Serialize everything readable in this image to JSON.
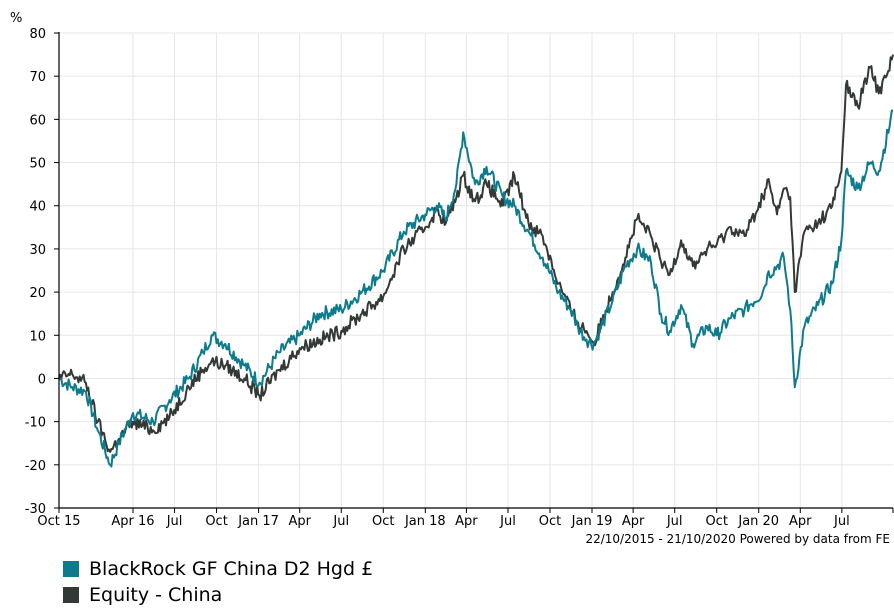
{
  "chart_data": {
    "type": "line",
    "title": "",
    "xlabel": "",
    "ylabel": "%",
    "ylim": [
      -30,
      80
    ],
    "yticks": [
      80,
      70,
      60,
      50,
      40,
      30,
      20,
      10,
      0,
      -10,
      -20,
      -30
    ],
    "grid": true,
    "legend_position": "bottom-left",
    "date_range": "22/10/2015 - 21/10/2020",
    "credit": "Powered by data from FE",
    "x_range": [
      "2015-10-22",
      "2020-10-21"
    ],
    "xtick_labels": [
      {
        "label": "Oct 15",
        "date": "2015-10-22"
      },
      {
        "label": "Apr 16",
        "date": "2016-04-01"
      },
      {
        "label": "Jul",
        "date": "2016-07-01"
      },
      {
        "label": "Oct",
        "date": "2016-10-01"
      },
      {
        "label": "Jan 17",
        "date": "2017-01-01"
      },
      {
        "label": "Apr",
        "date": "2017-04-01"
      },
      {
        "label": "Jul",
        "date": "2017-07-01"
      },
      {
        "label": "Oct",
        "date": "2017-10-01"
      },
      {
        "label": "Jan 18",
        "date": "2018-01-01"
      },
      {
        "label": "Apr",
        "date": "2018-04-01"
      },
      {
        "label": "Jul",
        "date": "2018-07-01"
      },
      {
        "label": "Oct",
        "date": "2018-10-01"
      },
      {
        "label": "Jan 19",
        "date": "2019-01-01"
      },
      {
        "label": "Apr",
        "date": "2019-04-01"
      },
      {
        "label": "Jul",
        "date": "2019-07-01"
      },
      {
        "label": "Oct",
        "date": "2019-10-01"
      },
      {
        "label": "Jan 20",
        "date": "2020-01-01"
      },
      {
        "label": "Apr",
        "date": "2020-04-01"
      },
      {
        "label": "Jul",
        "date": "2020-07-01"
      }
    ],
    "series": [
      {
        "name": "BlackRock GF China D2 Hgd £",
        "color": "#0e7b8c",
        "points": [
          [
            "2015-10-22",
            0
          ],
          [
            "2015-11-20",
            -2
          ],
          [
            "2015-12-20",
            -3
          ],
          [
            "2016-01-15",
            -12
          ],
          [
            "2016-02-11",
            -20
          ],
          [
            "2016-03-01",
            -15
          ],
          [
            "2016-04-01",
            -8
          ],
          [
            "2016-05-15",
            -10
          ],
          [
            "2016-06-20",
            -5
          ],
          [
            "2016-08-01",
            0
          ],
          [
            "2016-09-01",
            6
          ],
          [
            "2016-09-20",
            10
          ],
          [
            "2016-10-20",
            8
          ],
          [
            "2016-12-01",
            3
          ],
          [
            "2017-01-03",
            -1
          ],
          [
            "2017-02-15",
            6
          ],
          [
            "2017-04-01",
            10
          ],
          [
            "2017-05-15",
            15
          ],
          [
            "2017-07-01",
            16
          ],
          [
            "2017-08-15",
            20
          ],
          [
            "2017-10-01",
            25
          ],
          [
            "2017-11-15",
            34
          ],
          [
            "2018-01-01",
            38
          ],
          [
            "2018-01-26",
            40
          ],
          [
            "2018-02-15",
            37
          ],
          [
            "2018-03-10",
            45
          ],
          [
            "2018-03-25",
            57
          ],
          [
            "2018-04-20",
            45
          ],
          [
            "2018-05-15",
            49
          ],
          [
            "2018-06-20",
            42
          ],
          [
            "2018-07-15",
            40
          ],
          [
            "2018-08-15",
            34
          ],
          [
            "2018-09-15",
            28
          ],
          [
            "2018-10-20",
            20
          ],
          [
            "2018-11-15",
            16
          ],
          [
            "2018-12-01",
            12
          ],
          [
            "2018-12-20",
            9
          ],
          [
            "2019-01-05",
            8
          ],
          [
            "2019-02-15",
            18
          ],
          [
            "2019-03-15",
            26
          ],
          [
            "2019-04-10",
            30
          ],
          [
            "2019-05-10",
            27
          ],
          [
            "2019-06-01",
            15
          ],
          [
            "2019-06-20",
            11
          ],
          [
            "2019-07-15",
            17
          ],
          [
            "2019-08-10",
            8
          ],
          [
            "2019-09-10",
            12
          ],
          [
            "2019-10-01",
            10
          ],
          [
            "2019-11-01",
            14
          ],
          [
            "2019-12-01",
            16
          ],
          [
            "2020-01-10",
            20
          ],
          [
            "2020-01-20",
            24
          ],
          [
            "2020-02-10",
            26
          ],
          [
            "2020-02-25",
            28
          ],
          [
            "2020-03-10",
            16
          ],
          [
            "2020-03-20",
            -2
          ],
          [
            "2020-04-10",
            12
          ],
          [
            "2020-05-10",
            17
          ],
          [
            "2020-06-10",
            22
          ],
          [
            "2020-06-30",
            32
          ],
          [
            "2020-07-10",
            48
          ],
          [
            "2020-08-05",
            44
          ],
          [
            "2020-09-01",
            50
          ],
          [
            "2020-09-20",
            48
          ],
          [
            "2020-10-21",
            62
          ]
        ]
      },
      {
        "name": "Equity - China",
        "color": "#333a36",
        "points": [
          [
            "2015-10-22",
            0
          ],
          [
            "2015-11-20",
            1
          ],
          [
            "2015-12-20",
            -1
          ],
          [
            "2016-01-15",
            -10
          ],
          [
            "2016-02-11",
            -17
          ],
          [
            "2016-03-01",
            -14
          ],
          [
            "2016-04-01",
            -10
          ],
          [
            "2016-05-15",
            -12
          ],
          [
            "2016-06-20",
            -9
          ],
          [
            "2016-08-01",
            -2
          ],
          [
            "2016-09-01",
            2
          ],
          [
            "2016-09-20",
            4
          ],
          [
            "2016-10-20",
            3
          ],
          [
            "2016-12-01",
            0
          ],
          [
            "2017-01-03",
            -4
          ],
          [
            "2017-02-15",
            2
          ],
          [
            "2017-04-01",
            7
          ],
          [
            "2017-05-15",
            9
          ],
          [
            "2017-07-01",
            11
          ],
          [
            "2017-08-15",
            15
          ],
          [
            "2017-10-01",
            19
          ],
          [
            "2017-11-15",
            30
          ],
          [
            "2018-01-01",
            35
          ],
          [
            "2018-01-26",
            39
          ],
          [
            "2018-02-15",
            36
          ],
          [
            "2018-03-10",
            42
          ],
          [
            "2018-03-25",
            47
          ],
          [
            "2018-04-20",
            41
          ],
          [
            "2018-05-15",
            45
          ],
          [
            "2018-06-20",
            40
          ],
          [
            "2018-07-15",
            47
          ],
          [
            "2018-08-15",
            36
          ],
          [
            "2018-09-15",
            33
          ],
          [
            "2018-10-20",
            22
          ],
          [
            "2018-11-15",
            16
          ],
          [
            "2018-12-01",
            13
          ],
          [
            "2018-12-20",
            11
          ],
          [
            "2019-01-05",
            8
          ],
          [
            "2019-02-15",
            20
          ],
          [
            "2019-03-15",
            28
          ],
          [
            "2019-04-10",
            37
          ],
          [
            "2019-05-10",
            33
          ],
          [
            "2019-06-01",
            27
          ],
          [
            "2019-06-20",
            24
          ],
          [
            "2019-07-15",
            32
          ],
          [
            "2019-08-10",
            26
          ],
          [
            "2019-09-10",
            30
          ],
          [
            "2019-10-01",
            31
          ],
          [
            "2019-11-01",
            35
          ],
          [
            "2019-12-01",
            33
          ],
          [
            "2020-01-10",
            42
          ],
          [
            "2020-01-20",
            46
          ],
          [
            "2020-02-10",
            38
          ],
          [
            "2020-02-25",
            44
          ],
          [
            "2020-03-10",
            42
          ],
          [
            "2020-03-20",
            20
          ],
          [
            "2020-04-10",
            34
          ],
          [
            "2020-05-10",
            36
          ],
          [
            "2020-06-10",
            40
          ],
          [
            "2020-06-30",
            48
          ],
          [
            "2020-07-10",
            68
          ],
          [
            "2020-08-05",
            63
          ],
          [
            "2020-09-01",
            72
          ],
          [
            "2020-09-20",
            66
          ],
          [
            "2020-10-21",
            75
          ]
        ]
      }
    ]
  }
}
